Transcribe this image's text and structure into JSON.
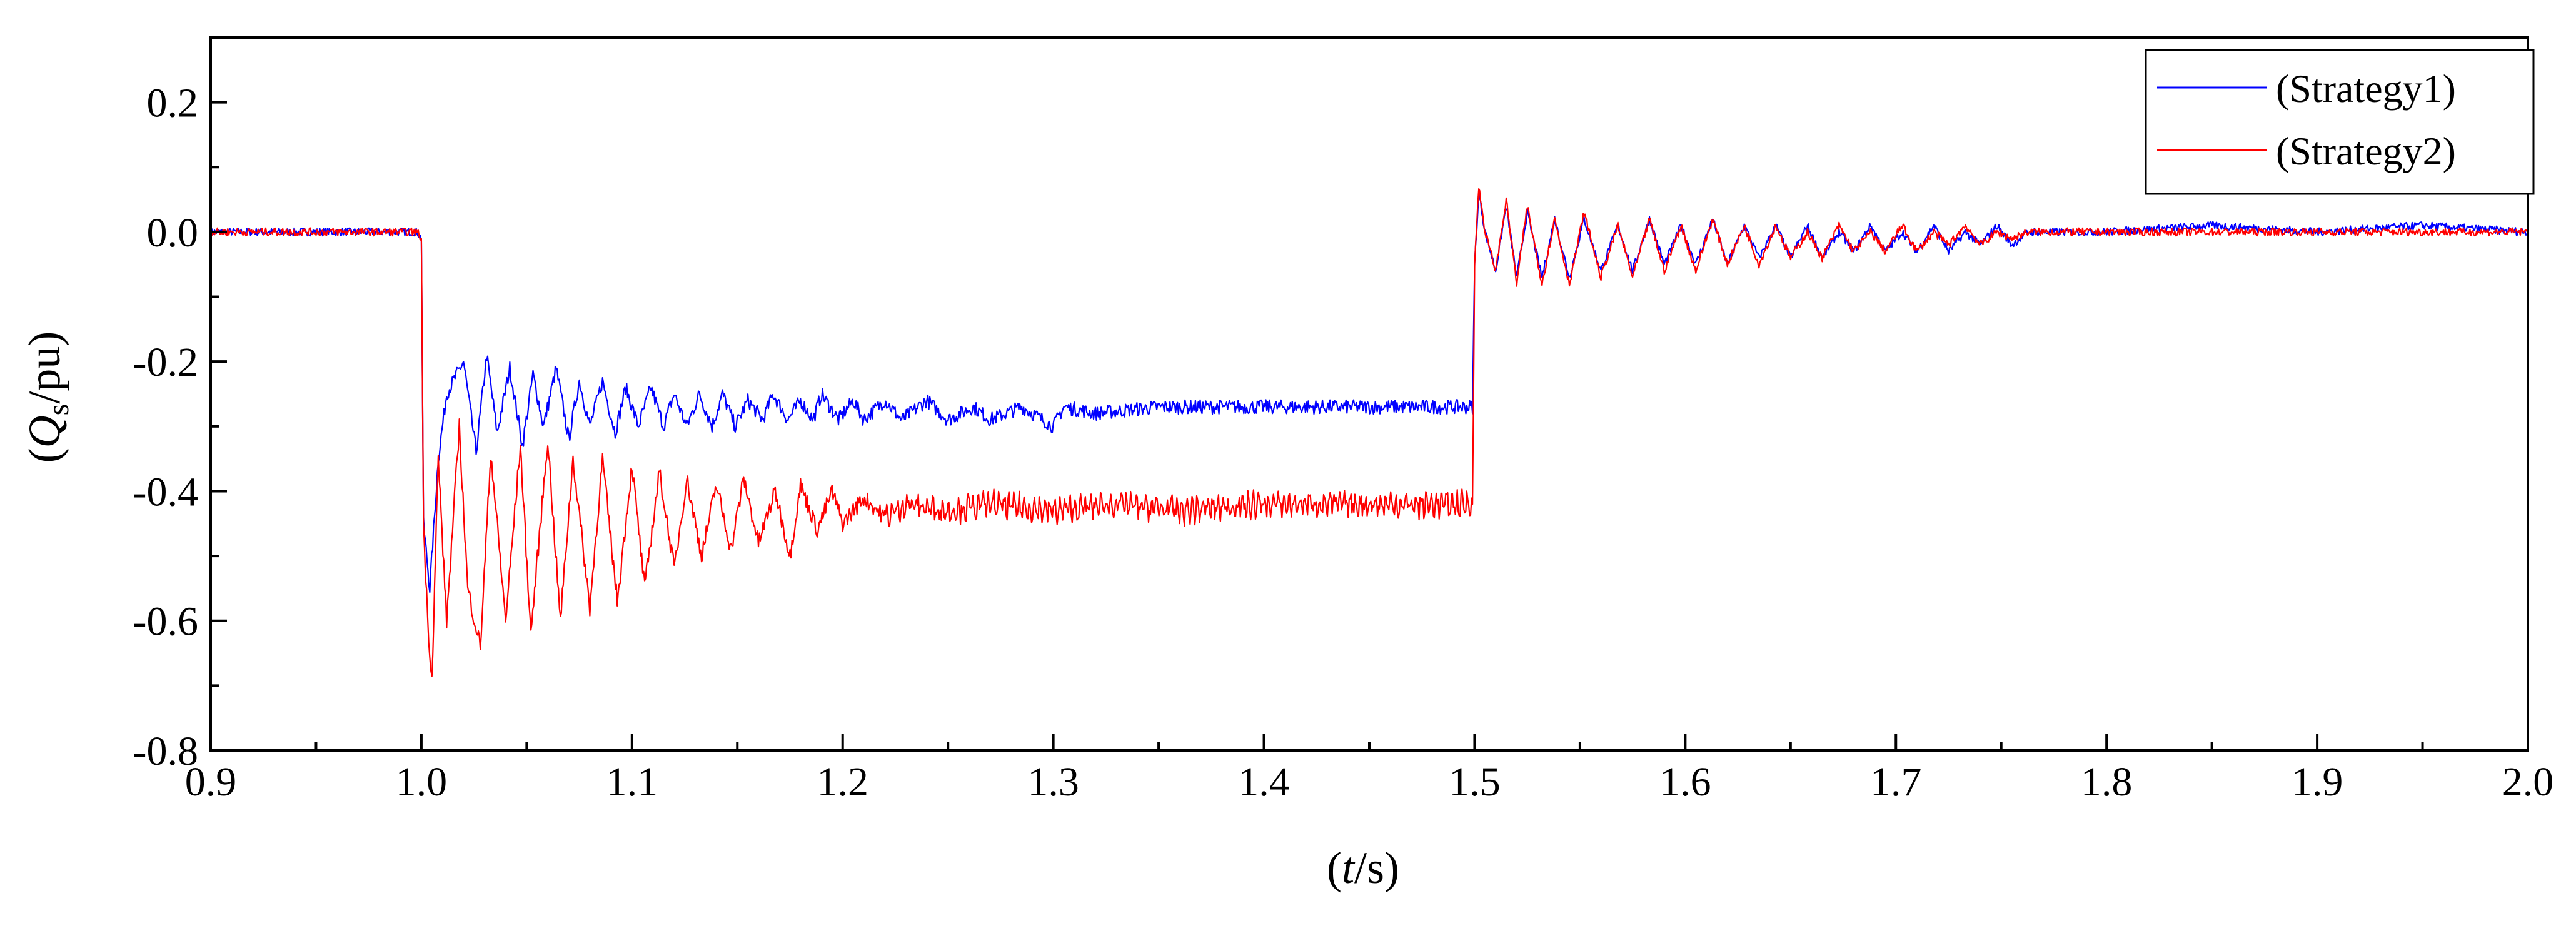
{
  "chart_data": {
    "type": "line",
    "xlabel": {
      "prefix": "(",
      "italic": "t",
      "suffix": "/s)"
    },
    "ylabel": {
      "prefix": "(",
      "italic": "Q",
      "sub": "s",
      "suffix": "/pu)"
    },
    "xlim": [
      0.9,
      2.0
    ],
    "ylim": [
      -0.8,
      0.3
    ],
    "x_ticks": [
      {
        "value": 0.9,
        "label": "0.9"
      },
      {
        "value": 1.0,
        "label": "1.0"
      },
      {
        "value": 1.1,
        "label": "1.1"
      },
      {
        "value": 1.2,
        "label": "1.2"
      },
      {
        "value": 1.3,
        "label": "1.3"
      },
      {
        "value": 1.4,
        "label": "1.4"
      },
      {
        "value": 1.5,
        "label": "1.5"
      },
      {
        "value": 1.6,
        "label": "1.6"
      },
      {
        "value": 1.7,
        "label": "1.7"
      },
      {
        "value": 1.8,
        "label": "1.8"
      },
      {
        "value": 1.9,
        "label": "1.9"
      },
      {
        "value": 2.0,
        "label": "2.0"
      }
    ],
    "y_ticks": [
      {
        "value": 0.2,
        "label": "0.2"
      },
      {
        "value": 0.0,
        "label": "0.0"
      },
      {
        "value": -0.2,
        "label": "-0.2"
      },
      {
        "value": -0.4,
        "label": "-0.4"
      },
      {
        "value": -0.6,
        "label": "-0.6"
      },
      {
        "value": -0.8,
        "label": "-0.8"
      }
    ],
    "grid": false,
    "legend_position": "top-right",
    "series": [
      {
        "name": "(Strategy1)",
        "color": "#0000ff",
        "x": [
          0.9,
          0.95,
          0.998,
          1.0,
          1.001,
          1.004,
          1.008,
          1.012,
          1.02,
          1.026,
          1.031,
          1.036,
          1.042,
          1.048,
          1.053,
          1.058,
          1.064,
          1.07,
          1.075,
          1.08,
          1.086,
          1.092,
          1.097,
          1.103,
          1.109,
          1.115,
          1.12,
          1.126,
          1.132,
          1.138,
          1.143,
          1.149,
          1.155,
          1.162,
          1.167,
          1.174,
          1.18,
          1.186,
          1.19,
          1.198,
          1.205,
          1.21,
          1.22,
          1.228,
          1.24,
          1.25,
          1.262,
          1.27,
          1.285,
          1.3,
          1.305,
          1.32,
          1.35,
          1.38,
          1.4,
          1.43,
          1.46,
          1.499,
          1.5,
          1.502,
          1.505,
          1.51,
          1.515,
          1.52,
          1.525,
          1.532,
          1.538,
          1.545,
          1.552,
          1.56,
          1.568,
          1.575,
          1.583,
          1.59,
          1.598,
          1.605,
          1.613,
          1.62,
          1.628,
          1.635,
          1.643,
          1.65,
          1.658,
          1.665,
          1.673,
          1.68,
          1.688,
          1.695,
          1.703,
          1.71,
          1.718,
          1.725,
          1.733,
          1.74,
          1.748,
          1.755,
          1.763,
          1.77,
          1.78,
          1.8,
          1.85,
          1.9,
          1.95,
          2.0
        ],
        "y": [
          0.0,
          0.0,
          0.0,
          -0.01,
          -0.45,
          -0.55,
          -0.35,
          -0.25,
          -0.2,
          -0.34,
          -0.19,
          -0.31,
          -0.21,
          -0.33,
          -0.22,
          -0.3,
          -0.21,
          -0.32,
          -0.23,
          -0.3,
          -0.23,
          -0.31,
          -0.24,
          -0.3,
          -0.24,
          -0.3,
          -0.25,
          -0.3,
          -0.25,
          -0.3,
          -0.25,
          -0.3,
          -0.26,
          -0.29,
          -0.25,
          -0.29,
          -0.26,
          -0.29,
          -0.25,
          -0.29,
          -0.26,
          -0.29,
          -0.26,
          -0.29,
          -0.26,
          -0.29,
          -0.27,
          -0.29,
          -0.27,
          -0.3,
          -0.27,
          -0.28,
          -0.27,
          -0.27,
          -0.27,
          -0.27,
          -0.27,
          -0.27,
          -0.05,
          0.06,
          0.0,
          -0.06,
          0.04,
          -0.07,
          0.03,
          -0.07,
          0.02,
          -0.07,
          0.02,
          -0.06,
          0.01,
          -0.06,
          0.02,
          -0.05,
          0.01,
          -0.05,
          0.02,
          -0.05,
          0.01,
          -0.04,
          0.01,
          -0.04,
          0.01,
          -0.04,
          0.0,
          -0.03,
          0.01,
          -0.03,
          0.0,
          -0.03,
          0.01,
          -0.03,
          0.0,
          -0.02,
          0.01,
          -0.02,
          0.0,
          0.0,
          0.0,
          0.0,
          0.01,
          0.0,
          0.01,
          0.0
        ]
      },
      {
        "name": "(Strategy2)",
        "color": "#ff0000",
        "x": [
          0.9,
          0.95,
          0.998,
          1.0,
          1.001,
          1.003,
          1.005,
          1.008,
          1.012,
          1.018,
          1.022,
          1.028,
          1.033,
          1.04,
          1.047,
          1.052,
          1.06,
          1.066,
          1.072,
          1.08,
          1.086,
          1.093,
          1.1,
          1.106,
          1.113,
          1.12,
          1.126,
          1.133,
          1.14,
          1.147,
          1.153,
          1.16,
          1.168,
          1.175,
          1.18,
          1.188,
          1.195,
          1.2,
          1.21,
          1.22,
          1.23,
          1.25,
          1.27,
          1.3,
          1.33,
          1.36,
          1.4,
          1.44,
          1.47,
          1.499,
          1.5,
          1.502,
          1.505,
          1.51,
          1.515,
          1.52,
          1.525,
          1.532,
          1.538,
          1.545,
          1.552,
          1.56,
          1.568,
          1.575,
          1.583,
          1.59,
          1.598,
          1.605,
          1.613,
          1.62,
          1.628,
          1.635,
          1.643,
          1.65,
          1.658,
          1.665,
          1.673,
          1.68,
          1.688,
          1.695,
          1.703,
          1.71,
          1.718,
          1.725,
          1.733,
          1.74,
          1.748,
          1.755,
          1.763,
          1.77,
          1.78,
          1.8,
          1.85,
          1.9,
          1.95,
          2.0
        ],
        "y": [
          0.0,
          0.0,
          0.0,
          -0.01,
          -0.45,
          -0.6,
          -0.69,
          -0.35,
          -0.6,
          -0.3,
          -0.55,
          -0.64,
          -0.34,
          -0.6,
          -0.33,
          -0.62,
          -0.32,
          -0.6,
          -0.35,
          -0.58,
          -0.35,
          -0.57,
          -0.36,
          -0.55,
          -0.37,
          -0.52,
          -0.38,
          -0.5,
          -0.39,
          -0.49,
          -0.38,
          -0.48,
          -0.4,
          -0.5,
          -0.39,
          -0.46,
          -0.4,
          -0.45,
          -0.41,
          -0.44,
          -0.42,
          -0.43,
          -0.42,
          -0.43,
          -0.42,
          -0.43,
          -0.42,
          -0.42,
          -0.42,
          -0.42,
          -0.05,
          0.07,
          0.0,
          -0.06,
          0.05,
          -0.08,
          0.04,
          -0.08,
          0.02,
          -0.08,
          0.03,
          -0.07,
          0.01,
          -0.07,
          0.02,
          -0.06,
          0.01,
          -0.06,
          0.02,
          -0.05,
          0.01,
          -0.05,
          0.01,
          -0.04,
          0.0,
          -0.04,
          0.01,
          -0.03,
          0.0,
          -0.03,
          0.01,
          -0.03,
          0.0,
          -0.02,
          0.01,
          -0.02,
          0.0,
          -0.01,
          0.0,
          0.0,
          0.0,
          0.0,
          0.0,
          0.0,
          0.0,
          0.0
        ]
      }
    ]
  }
}
